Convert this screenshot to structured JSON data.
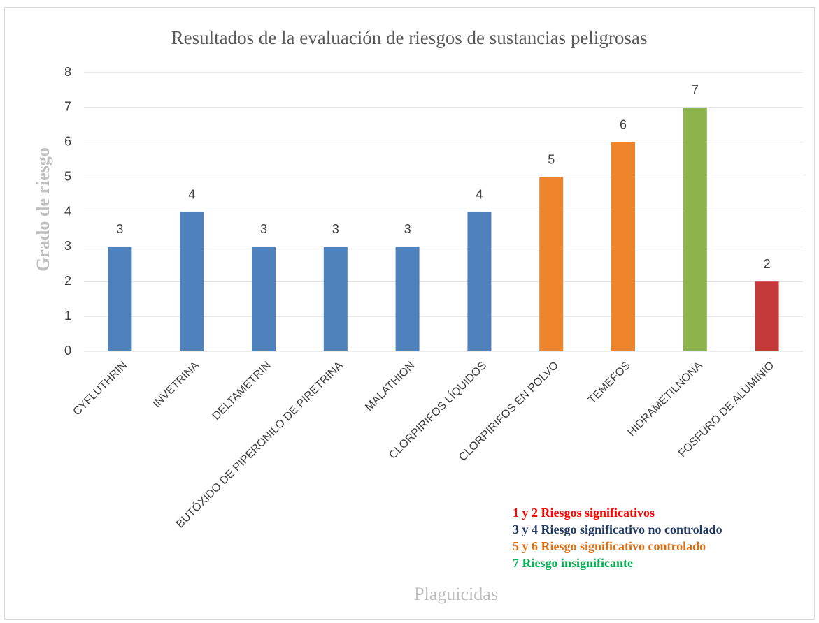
{
  "chart_data": {
    "type": "bar",
    "title": "Resultados de la evaluación de riesgos de sustancias peligrosas",
    "y_label": "Grado de riesgo",
    "x_label": "Plaguicidas",
    "categories": [
      "CYFLUTHRIN",
      "INVETRINA",
      "DELTAMETRIN",
      "BUTÓXIDO DE PIPERONILO DE PIRETRINA",
      "MALATHION",
      "CLORPIRIFOS LÍQUIDOS",
      "CLORPIRIFOS EN POLVO",
      "TEMEFOS",
      "HIDRAMETILNONA",
      "FOSFURO DE ALUMINIO"
    ],
    "values": [
      3,
      4,
      3,
      3,
      3,
      4,
      5,
      6,
      7,
      2
    ],
    "colors": [
      "#4f81bd",
      "#4f81bd",
      "#4f81bd",
      "#4f81bd",
      "#4f81bd",
      "#4f81bd",
      "#ee852c",
      "#ee852c",
      "#8db34b",
      "#c43a38"
    ],
    "ylim": [
      0,
      8
    ],
    "yticks": [
      0,
      1,
      2,
      3,
      4,
      5,
      6,
      7,
      8
    ],
    "grid": true,
    "annotations": [
      {
        "text": "1 y 2  Riesgos significativos",
        "color": "#ff0000"
      },
      {
        "text": "3 y 4 Riesgo significativo no controlado",
        "color": "#1f3864"
      },
      {
        "text": "5 y 6 Riesgo significativo controlado",
        "color": "#e36c0a"
      },
      {
        "text": "7  Riesgo insignificante",
        "color": "#00b050"
      }
    ]
  }
}
